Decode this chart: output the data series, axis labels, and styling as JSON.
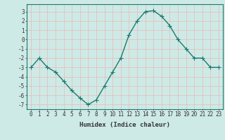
{
  "x": [
    0,
    1,
    2,
    3,
    4,
    5,
    6,
    7,
    8,
    9,
    10,
    11,
    12,
    13,
    14,
    15,
    16,
    17,
    18,
    19,
    20,
    21,
    22,
    23
  ],
  "y": [
    -3.0,
    -2.0,
    -3.0,
    -3.5,
    -4.5,
    -5.5,
    -6.3,
    -7.0,
    -6.5,
    -5.0,
    -3.5,
    -2.0,
    0.5,
    2.0,
    3.0,
    3.1,
    2.5,
    1.5,
    0.0,
    -1.0,
    -2.0,
    -2.0,
    -3.0,
    -3.0
  ],
  "line_color": "#1a7a6e",
  "marker": "+",
  "markersize": 4,
  "linewidth": 1.0,
  "xlabel": "Humidex (Indice chaleur)",
  "xlim": [
    -0.5,
    23.5
  ],
  "ylim": [
    -7.5,
    3.8
  ],
  "yticks": [
    -7,
    -6,
    -5,
    -4,
    -3,
    -2,
    -1,
    0,
    1,
    2,
    3
  ],
  "xticks": [
    0,
    1,
    2,
    3,
    4,
    5,
    6,
    7,
    8,
    9,
    10,
    11,
    12,
    13,
    14,
    15,
    16,
    17,
    18,
    19,
    20,
    21,
    22,
    23
  ],
  "background_color": "#ceeae6",
  "grid_color": "#e8b8b8",
  "grid_linewidth": 0.5,
  "tick_fontsize": 5.5,
  "xlabel_fontsize": 6.5,
  "tick_color": "#333333",
  "markeredgewidth": 0.8
}
